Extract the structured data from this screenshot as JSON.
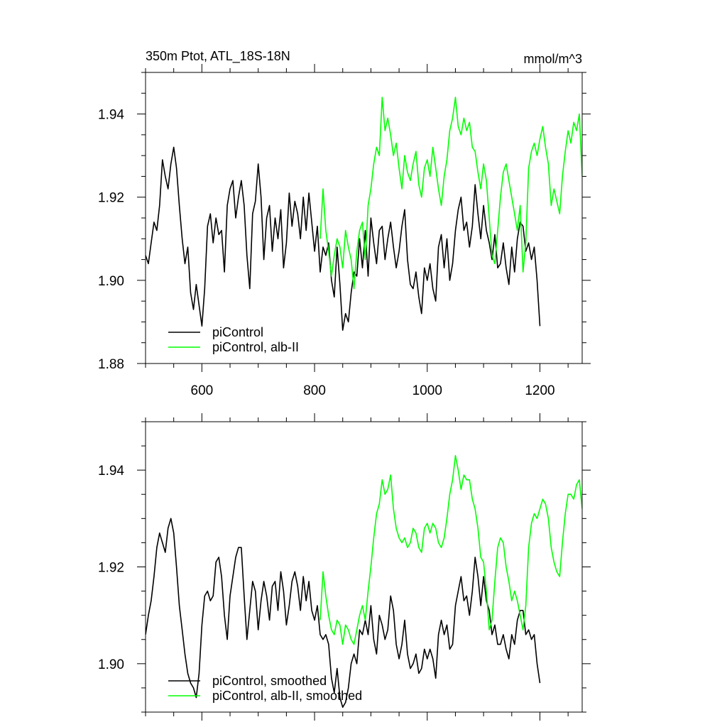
{
  "chart_data": [
    {
      "type": "line",
      "title": "350m Ptot, ATL_18S-18N",
      "units": "mmol/m^3",
      "xlim": [
        500,
        1275
      ],
      "ylim": [
        1.88,
        1.95
      ],
      "xticks": [
        600,
        800,
        1000,
        1200
      ],
      "xtick_labels": [
        "600",
        "800",
        "1000",
        "1200"
      ],
      "yticks": [
        1.88,
        1.9,
        1.92,
        1.94
      ],
      "ytick_labels": [
        "1.88",
        "1.90",
        "1.92",
        "1.94"
      ],
      "show_xtick_labels": true,
      "grid": false,
      "legend_position": "bottom-left",
      "series": [
        {
          "name": "piControl",
          "color": "#000000",
          "x": [
            500,
            505,
            510,
            515,
            520,
            525,
            530,
            535,
            540,
            545,
            550,
            555,
            560,
            565,
            570,
            575,
            580,
            585,
            590,
            595,
            600,
            605,
            610,
            615,
            620,
            625,
            630,
            635,
            640,
            645,
            650,
            655,
            660,
            665,
            670,
            675,
            680,
            685,
            690,
            695,
            700,
            705,
            710,
            715,
            720,
            725,
            730,
            735,
            740,
            745,
            750,
            755,
            760,
            765,
            770,
            775,
            780,
            785,
            790,
            795,
            800,
            805,
            810,
            815,
            820,
            825,
            830,
            835,
            840,
            845,
            850,
            855,
            860,
            865,
            870,
            875,
            880,
            885,
            890,
            895,
            900,
            905,
            910,
            915,
            920,
            925,
            930,
            935,
            940,
            945,
            950,
            955,
            960,
            965,
            970,
            975,
            980,
            985,
            990,
            995,
            1000,
            1005,
            1010,
            1015,
            1020,
            1025,
            1030,
            1035,
            1040,
            1045,
            1050,
            1055,
            1060,
            1065,
            1070,
            1075,
            1080,
            1085,
            1090,
            1095,
            1100,
            1105,
            1110,
            1115,
            1120,
            1125,
            1130,
            1135,
            1140,
            1145,
            1150,
            1155,
            1160,
            1165,
            1170,
            1175,
            1180,
            1185,
            1190,
            1195,
            1200
          ],
          "values": [
            1.906,
            1.904,
            1.909,
            1.914,
            1.912,
            1.918,
            1.929,
            1.925,
            1.922,
            1.928,
            1.932,
            1.927,
            1.918,
            1.91,
            1.904,
            1.908,
            1.897,
            1.893,
            1.899,
            1.894,
            1.889,
            1.898,
            1.913,
            1.916,
            1.909,
            1.915,
            1.911,
            1.912,
            1.902,
            1.918,
            1.922,
            1.924,
            1.915,
            1.92,
            1.924,
            1.918,
            1.906,
            1.898,
            1.916,
            1.919,
            1.928,
            1.92,
            1.905,
            1.915,
            1.918,
            1.907,
            1.915,
            1.91,
            1.917,
            1.903,
            1.909,
            1.921,
            1.913,
            1.919,
            1.916,
            1.91,
            1.92,
            1.912,
            1.921,
            1.914,
            1.907,
            1.913,
            1.902,
            1.908,
            1.906,
            1.909,
            1.9,
            1.896,
            1.908,
            1.899,
            1.888,
            1.892,
            1.89,
            1.897,
            1.902,
            1.901,
            1.91,
            1.903,
            1.912,
            1.901,
            1.915,
            1.909,
            1.904,
            1.912,
            1.913,
            1.905,
            1.91,
            1.914,
            1.908,
            1.903,
            1.907,
            1.913,
            1.917,
            1.905,
            1.899,
            1.898,
            1.902,
            1.896,
            1.892,
            1.903,
            1.9,
            1.904,
            1.898,
            1.895,
            1.908,
            1.911,
            1.903,
            1.91,
            1.9,
            1.904,
            1.912,
            1.917,
            1.92,
            1.912,
            1.914,
            1.908,
            1.913,
            1.923,
            1.916,
            1.91,
            1.918,
            1.912,
            1.909,
            1.905,
            1.911,
            1.903,
            1.904,
            1.909,
            1.903,
            1.899,
            1.908,
            1.902,
            1.91,
            1.914,
            1.913,
            1.907,
            1.909,
            1.905,
            1.908,
            1.9,
            1.889
          ]
        },
        {
          "name": "piControl, alb-II",
          "color": "#00ff00",
          "x": [
            810,
            815,
            820,
            825,
            830,
            835,
            840,
            845,
            850,
            855,
            860,
            865,
            870,
            875,
            880,
            885,
            890,
            895,
            900,
            905,
            910,
            915,
            920,
            925,
            930,
            935,
            940,
            945,
            950,
            955,
            960,
            965,
            970,
            975,
            980,
            985,
            990,
            995,
            1000,
            1005,
            1010,
            1015,
            1020,
            1025,
            1030,
            1035,
            1040,
            1045,
            1050,
            1055,
            1060,
            1065,
            1070,
            1075,
            1080,
            1085,
            1090,
            1095,
            1100,
            1105,
            1110,
            1115,
            1120,
            1125,
            1130,
            1135,
            1140,
            1145,
            1150,
            1155,
            1160,
            1165,
            1170,
            1175,
            1180,
            1185,
            1190,
            1195,
            1200,
            1205,
            1210,
            1215,
            1220,
            1225,
            1230,
            1235,
            1240,
            1245,
            1250,
            1255,
            1260,
            1265,
            1270,
            1275
          ],
          "values": [
            1.91,
            1.922,
            1.912,
            1.907,
            1.901,
            1.906,
            1.91,
            1.908,
            1.903,
            1.912,
            1.908,
            1.905,
            1.898,
            1.907,
            1.912,
            1.914,
            1.905,
            1.918,
            1.922,
            1.928,
            1.932,
            1.93,
            1.944,
            1.936,
            1.939,
            1.935,
            1.93,
            1.933,
            1.927,
            1.922,
            1.93,
            1.926,
            1.924,
            1.928,
            1.931,
            1.923,
            1.92,
            1.927,
            1.929,
            1.925,
            1.932,
            1.927,
            1.922,
            1.918,
            1.925,
            1.929,
            1.936,
            1.939,
            1.944,
            1.937,
            1.935,
            1.939,
            1.936,
            1.938,
            1.932,
            1.931,
            1.926,
            1.922,
            1.928,
            1.924,
            1.915,
            1.906,
            1.904,
            1.912,
            1.92,
            1.926,
            1.928,
            1.924,
            1.92,
            1.916,
            1.912,
            1.918,
            1.902,
            1.909,
            1.927,
            1.931,
            1.933,
            1.93,
            1.934,
            1.937,
            1.932,
            1.928,
            1.918,
            1.922,
            1.919,
            1.916,
            1.925,
            1.931,
            1.936,
            1.933,
            1.938,
            1.936,
            1.94,
            1.925
          ]
        }
      ]
    },
    {
      "type": "line",
      "title": "",
      "units": "",
      "xlim": [
        500,
        1275
      ],
      "ylim": [
        1.89,
        1.95
      ],
      "xticks": [
        600,
        800,
        1000,
        1200
      ],
      "xtick_labels": [
        "600",
        "800",
        "1000",
        "1200"
      ],
      "yticks": [
        1.9,
        1.92,
        1.94
      ],
      "ytick_labels": [
        "1.90",
        "1.92",
        "1.94"
      ],
      "show_xtick_labels": false,
      "grid": false,
      "legend_position": "bottom-left",
      "series": [
        {
          "name": "piControl, smoothed",
          "color": "#000000",
          "x": [
            500,
            505,
            510,
            515,
            520,
            525,
            530,
            535,
            540,
            545,
            550,
            555,
            560,
            565,
            570,
            575,
            580,
            585,
            590,
            595,
            600,
            605,
            610,
            615,
            620,
            625,
            630,
            635,
            640,
            645,
            650,
            655,
            660,
            665,
            670,
            675,
            680,
            685,
            690,
            695,
            700,
            705,
            710,
            715,
            720,
            725,
            730,
            735,
            740,
            745,
            750,
            755,
            760,
            765,
            770,
            775,
            780,
            785,
            790,
            795,
            800,
            805,
            810,
            815,
            820,
            825,
            830,
            835,
            840,
            845,
            850,
            855,
            860,
            865,
            870,
            875,
            880,
            885,
            890,
            895,
            900,
            905,
            910,
            915,
            920,
            925,
            930,
            935,
            940,
            945,
            950,
            955,
            960,
            965,
            970,
            975,
            980,
            985,
            990,
            995,
            1000,
            1005,
            1010,
            1015,
            1020,
            1025,
            1030,
            1035,
            1040,
            1045,
            1050,
            1055,
            1060,
            1065,
            1070,
            1075,
            1080,
            1085,
            1090,
            1095,
            1100,
            1105,
            1110,
            1115,
            1120,
            1125,
            1130,
            1135,
            1140,
            1145,
            1150,
            1155,
            1160,
            1165,
            1170,
            1175,
            1180,
            1185,
            1190,
            1195,
            1200
          ],
          "values": [
            1.906,
            1.91,
            1.913,
            1.918,
            1.924,
            1.927,
            1.925,
            1.923,
            1.928,
            1.93,
            1.927,
            1.92,
            1.912,
            1.907,
            1.902,
            1.898,
            1.896,
            1.895,
            1.893,
            1.898,
            1.908,
            1.914,
            1.915,
            1.913,
            1.914,
            1.921,
            1.922,
            1.918,
            1.91,
            1.905,
            1.914,
            1.918,
            1.922,
            1.924,
            1.924,
            1.914,
            1.905,
            1.911,
            1.917,
            1.915,
            1.907,
            1.913,
            1.917,
            1.914,
            1.909,
            1.916,
            1.917,
            1.911,
            1.919,
            1.915,
            1.908,
            1.912,
            1.917,
            1.919,
            1.916,
            1.911,
            1.918,
            1.913,
            1.917,
            1.911,
            1.909,
            1.912,
            1.906,
            1.905,
            1.906,
            1.904,
            1.897,
            1.894,
            1.899,
            1.893,
            1.891,
            1.892,
            1.895,
            1.9,
            1.902,
            1.9,
            1.907,
            1.906,
            1.909,
            1.906,
            1.912,
            1.905,
            1.902,
            1.91,
            1.908,
            1.905,
            1.907,
            1.914,
            1.911,
            1.904,
            1.901,
            1.904,
            1.909,
            1.902,
            1.899,
            1.9,
            1.902,
            1.898,
            1.899,
            1.903,
            1.901,
            1.903,
            1.901,
            1.897,
            1.906,
            1.909,
            1.906,
            1.908,
            1.903,
            1.904,
            1.912,
            1.915,
            1.918,
            1.913,
            1.914,
            1.91,
            1.915,
            1.922,
            1.918,
            1.912,
            1.918,
            1.913,
            1.911,
            1.906,
            1.908,
            1.904,
            1.904,
            1.906,
            1.903,
            1.901,
            1.906,
            1.904,
            1.909,
            1.911,
            1.911,
            1.906,
            1.907,
            1.905,
            1.906,
            1.9,
            1.896
          ]
        },
        {
          "name": "piControl, alb-II, smoothed",
          "color": "#00ff00",
          "x": [
            810,
            815,
            820,
            825,
            830,
            835,
            840,
            845,
            850,
            855,
            860,
            865,
            870,
            875,
            880,
            885,
            890,
            895,
            900,
            905,
            910,
            915,
            920,
            925,
            930,
            935,
            940,
            945,
            950,
            955,
            960,
            965,
            970,
            975,
            980,
            985,
            990,
            995,
            1000,
            1005,
            1010,
            1015,
            1020,
            1025,
            1030,
            1035,
            1040,
            1045,
            1050,
            1055,
            1060,
            1065,
            1070,
            1075,
            1080,
            1085,
            1090,
            1095,
            1100,
            1105,
            1110,
            1115,
            1120,
            1125,
            1130,
            1135,
            1140,
            1145,
            1150,
            1155,
            1160,
            1165,
            1170,
            1175,
            1180,
            1185,
            1190,
            1195,
            1200,
            1205,
            1210,
            1215,
            1220,
            1225,
            1230,
            1235,
            1240,
            1245,
            1250,
            1255,
            1260,
            1265,
            1270,
            1275
          ],
          "values": [
            1.909,
            1.919,
            1.914,
            1.91,
            1.907,
            1.906,
            1.909,
            1.908,
            1.904,
            1.908,
            1.907,
            1.905,
            1.904,
            1.907,
            1.91,
            1.912,
            1.909,
            1.915,
            1.92,
            1.926,
            1.931,
            1.933,
            1.938,
            1.935,
            1.936,
            1.939,
            1.932,
            1.928,
            1.926,
            1.925,
            1.926,
            1.924,
            1.925,
            1.928,
            1.927,
            1.924,
            1.923,
            1.928,
            1.929,
            1.927,
            1.929,
            1.928,
            1.925,
            1.924,
            1.926,
            1.93,
            1.935,
            1.938,
            1.943,
            1.94,
            1.936,
            1.939,
            1.938,
            1.938,
            1.934,
            1.932,
            1.928,
            1.922,
            1.921,
            1.915,
            1.907,
            1.909,
            1.917,
            1.924,
            1.926,
            1.925,
            1.92,
            1.917,
            1.913,
            1.915,
            1.913,
            1.91,
            1.907,
            1.912,
            1.924,
            1.929,
            1.931,
            1.93,
            1.932,
            1.934,
            1.933,
            1.93,
            1.924,
            1.921,
            1.919,
            1.918,
            1.925,
            1.931,
            1.935,
            1.935,
            1.934,
            1.937,
            1.938,
            1.932
          ]
        }
      ]
    }
  ]
}
